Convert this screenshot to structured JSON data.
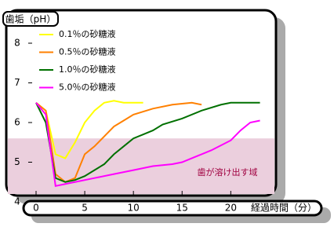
{
  "chart_data": {
    "type": "line",
    "y_label": "歯垢（pH）",
    "x_label": "経過時間（分）",
    "annotation": "歯が溶け出す域",
    "threshold": 5.6,
    "threshold_color": "#ebcfdd",
    "xlim": [
      0,
      24
    ],
    "xticks": [
      0,
      5,
      10,
      15,
      20
    ],
    "ylim": [
      4,
      8
    ],
    "yticks": [
      4,
      5,
      6,
      7,
      8
    ],
    "series": [
      {
        "name": "0.1％の砂糖液",
        "color": "#ffff00",
        "x": [
          0,
          1,
          2,
          3,
          4,
          5,
          6,
          7,
          8,
          9,
          10,
          11
        ],
        "values": [
          6.5,
          6.3,
          5.2,
          5.1,
          5.5,
          6.0,
          6.3,
          6.5,
          6.55,
          6.5,
          6.5,
          6.5
        ]
      },
      {
        "name": "0.5％の砂糖液",
        "color": "#ff8000",
        "x": [
          0,
          1,
          2,
          3,
          4,
          5,
          6,
          7,
          8,
          9,
          10,
          12,
          14,
          16,
          17
        ],
        "values": [
          6.5,
          6.3,
          4.7,
          4.5,
          4.6,
          5.2,
          5.4,
          5.65,
          5.9,
          6.05,
          6.2,
          6.35,
          6.45,
          6.5,
          6.45
        ]
      },
      {
        "name": "1.0％の砂糖液",
        "color": "#007000",
        "x": [
          0,
          1,
          2,
          3,
          4,
          5,
          6,
          7,
          8,
          9,
          10,
          11,
          12,
          13,
          15,
          17,
          19,
          20,
          23
        ],
        "values": [
          6.5,
          6.0,
          4.6,
          4.5,
          4.55,
          4.65,
          4.8,
          4.95,
          5.2,
          5.4,
          5.6,
          5.7,
          5.8,
          5.95,
          6.1,
          6.3,
          6.45,
          6.5,
          6.5
        ]
      },
      {
        "name": "5.0％の砂糖液",
        "color": "#ff00ff",
        "x": [
          0,
          1,
          2,
          3,
          4,
          6,
          8,
          10,
          12,
          14,
          15,
          16,
          18,
          20,
          21,
          22,
          23
        ],
        "values": [
          6.5,
          6.2,
          4.4,
          4.45,
          4.5,
          4.6,
          4.7,
          4.8,
          4.9,
          4.95,
          5.0,
          5.1,
          5.3,
          5.55,
          5.8,
          6.0,
          6.05
        ]
      }
    ]
  }
}
